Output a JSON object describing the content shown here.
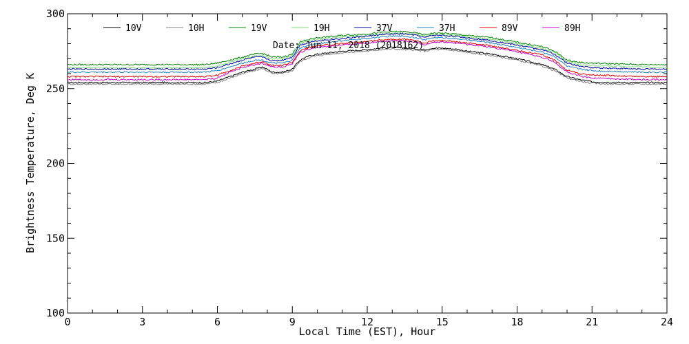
{
  "chart_data": {
    "type": "line",
    "title": "",
    "xlabel": "Local Time (EST), Hour",
    "ylabel": "Brightness Temperature, Deg K",
    "xlim": [
      0,
      24
    ],
    "ylim": [
      100,
      300
    ],
    "xticks": [
      0,
      3,
      6,
      9,
      12,
      15,
      18,
      21,
      24
    ],
    "yticks": [
      100,
      150,
      200,
      250,
      300
    ],
    "grid": false,
    "legend_position": "top",
    "annotation": "Date: Jun 11, 2018 (2018162)",
    "x": [
      0,
      1,
      2,
      3,
      4,
      5,
      5.5,
      6,
      6.5,
      7,
      7.5,
      7.8,
      8.2,
      8.6,
      9,
      9.3,
      9.7,
      10,
      11,
      12,
      12.5,
      13,
      13.5,
      14,
      14.3,
      14.6,
      15,
      15.5,
      16,
      17,
      18,
      19,
      19.5,
      20,
      20.5,
      21,
      22,
      23,
      24
    ],
    "series": [
      {
        "name": "10V",
        "color": "#000000",
        "values": [
          254,
          254,
          254,
          254,
          254,
          254,
          254,
          255,
          258,
          261,
          263,
          264.5,
          261,
          261,
          263,
          269,
          272,
          273,
          275,
          276,
          277,
          277.5,
          277,
          276.5,
          276,
          277,
          277,
          276.5,
          275,
          273,
          270,
          266,
          263,
          258,
          256,
          254.5,
          254,
          254,
          254
        ]
      },
      {
        "name": "10H",
        "color": "#808080",
        "values": [
          253,
          253,
          253,
          253,
          253,
          253,
          253,
          254,
          257,
          260,
          262,
          263.5,
          260,
          260,
          262,
          268,
          271,
          272,
          274,
          275,
          276,
          276.5,
          276,
          275.5,
          275,
          276,
          276,
          275.5,
          274,
          272,
          269,
          265,
          262,
          257,
          255,
          253.5,
          253,
          253,
          253
        ]
      },
      {
        "name": "19V",
        "color": "#008000",
        "values": [
          266,
          266,
          266,
          266,
          266,
          266,
          266,
          267,
          269,
          271,
          273,
          273.5,
          271,
          271,
          273,
          281,
          283,
          284,
          285.5,
          286.5,
          287.5,
          288,
          288,
          287,
          286,
          287,
          287,
          286.5,
          285.5,
          284,
          281,
          278,
          275,
          269,
          267.5,
          267,
          266.5,
          266,
          266
        ]
      },
      {
        "name": "19H",
        "color": "#80e080",
        "values": [
          264,
          264,
          264,
          264,
          264,
          264,
          264,
          265,
          267.5,
          270,
          272,
          272,
          269.5,
          270,
          272,
          280,
          282,
          283,
          284.5,
          285.5,
          286.5,
          287,
          287,
          286,
          285,
          286,
          286,
          285.5,
          284.5,
          283,
          280,
          277,
          274,
          268,
          266,
          265.5,
          265,
          264.5,
          264
        ]
      },
      {
        "name": "37V",
        "color": "#0000a0",
        "values": [
          263,
          263,
          263,
          263,
          263,
          263,
          263,
          264,
          266.5,
          269,
          271,
          271,
          268.5,
          269,
          271,
          279,
          281,
          282,
          283.5,
          285,
          286,
          286.5,
          286.5,
          285.5,
          284,
          285.5,
          285.5,
          285,
          284,
          282,
          279,
          276,
          273,
          267,
          265,
          264,
          263.5,
          263,
          263
        ]
      },
      {
        "name": "37H",
        "color": "#2080c0",
        "values": [
          261,
          261,
          261,
          261,
          261,
          261,
          261,
          262,
          264.5,
          267,
          269,
          269,
          267,
          267,
          269,
          277,
          279,
          280,
          282,
          283.5,
          284.5,
          285,
          285,
          284,
          282.5,
          284,
          284,
          283.5,
          282.5,
          280.5,
          277.5,
          274.5,
          271.5,
          265,
          263,
          262,
          261.5,
          261,
          261
        ]
      },
      {
        "name": "89V",
        "color": "#e00000",
        "values": [
          258,
          258,
          258,
          258,
          258,
          258,
          258,
          259,
          262,
          265,
          267,
          268,
          265.5,
          265.5,
          267.5,
          275,
          277.5,
          278.5,
          280,
          281.5,
          282.5,
          283,
          283,
          282,
          280,
          282,
          282,
          281.5,
          280.5,
          278.5,
          275.5,
          272.5,
          269,
          262.5,
          260,
          259,
          258.5,
          258,
          258
        ]
      },
      {
        "name": "89H",
        "color": "#c000c0",
        "values": [
          256,
          256,
          256,
          256,
          256,
          256,
          256,
          257,
          261,
          264,
          266,
          267,
          264.5,
          264.5,
          266.5,
          274,
          276.5,
          277.5,
          279,
          280.5,
          281.5,
          282,
          282,
          281,
          279,
          281,
          281,
          280.5,
          279.5,
          277.5,
          274.5,
          271,
          267.5,
          261,
          258.5,
          257,
          256.5,
          256,
          256
        ]
      }
    ]
  }
}
